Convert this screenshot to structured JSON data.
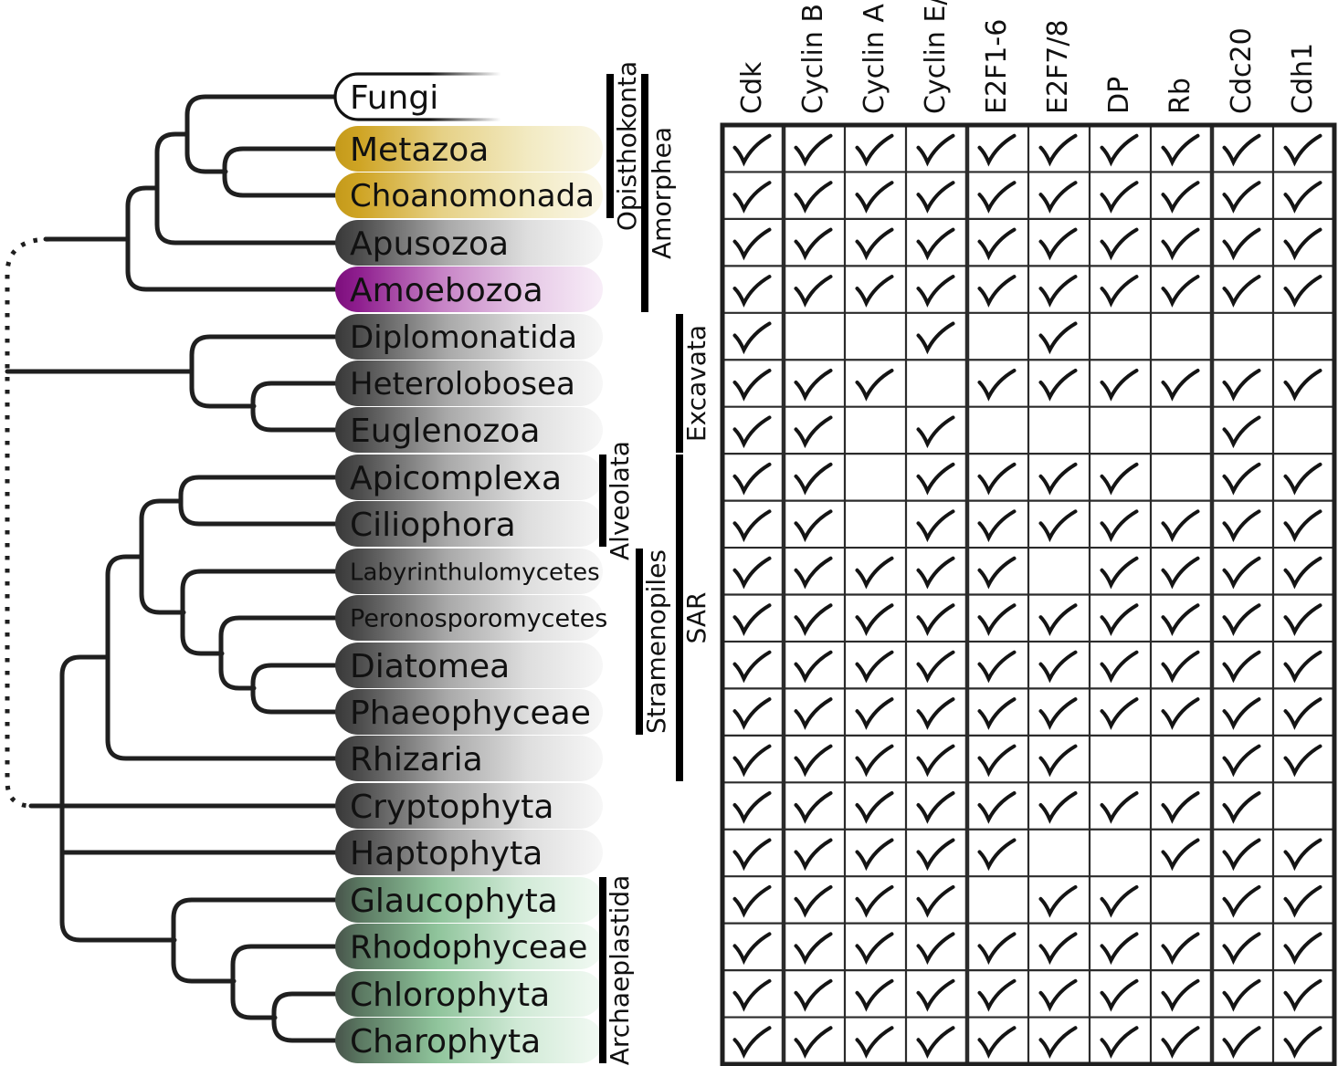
{
  "taxa": [
    {
      "name": "Fungi",
      "style": "outline"
    },
    {
      "name": "Metazoa",
      "style": "gold"
    },
    {
      "name": "Choanomonada",
      "style": "gold"
    },
    {
      "name": "Apusozoa",
      "style": "gray"
    },
    {
      "name": "Amoebozoa",
      "style": "purple"
    },
    {
      "name": "Diplomonatida",
      "style": "gray"
    },
    {
      "name": "Heterolobosea",
      "style": "gray"
    },
    {
      "name": "Euglenozoa",
      "style": "gray"
    },
    {
      "name": "Apicomplexa",
      "style": "gray"
    },
    {
      "name": "Ciliophora",
      "style": "gray"
    },
    {
      "name": "Labyrinthulomycetes",
      "style": "gray"
    },
    {
      "name": "Peronosporomycetes",
      "style": "gray"
    },
    {
      "name": "Diatomea",
      "style": "gray"
    },
    {
      "name": "Phaeophyceae",
      "style": "gray"
    },
    {
      "name": "Rhizaria",
      "style": "gray"
    },
    {
      "name": "Cryptophyta",
      "style": "gray"
    },
    {
      "name": "Haptophyta",
      "style": "gray"
    },
    {
      "name": "Glaucophyta",
      "style": "green"
    },
    {
      "name": "Rhodophyceae",
      "style": "green"
    },
    {
      "name": "Chlorophyta",
      "style": "green"
    },
    {
      "name": "Charophyta",
      "style": "green"
    }
  ],
  "clades": [
    {
      "label": "Opisthokonta",
      "from": "Fungi",
      "to": "Choanomonada"
    },
    {
      "label": "Amorphea",
      "from": "Fungi",
      "to": "Amoebozoa"
    },
    {
      "label": "Excavata",
      "from": "Diplomonatida",
      "to": "Euglenozoa"
    },
    {
      "label": "Alveolata",
      "from": "Apicomplexa",
      "to": "Ciliophora"
    },
    {
      "label": "SAR",
      "from": "Apicomplexa",
      "to": "Rhizaria"
    },
    {
      "label": "Stramenopiles",
      "from": "Labyrinthulomycetes",
      "to": "Phaeophyceae"
    },
    {
      "label": "Archaeplastida",
      "from": "Glaucophyta",
      "to": "Charophyta"
    }
  ],
  "matrix": {
    "columns": [
      "Cdk",
      "Cyclin B",
      "Cyclin A",
      "Cyclin E/D",
      "E2F1-6",
      "E2F7/8",
      "DP",
      "Rb",
      "Cdc20",
      "Cdh1"
    ],
    "column_groups_end_after": [
      "Cdk",
      "Cyclin E/D",
      "Rb"
    ],
    "check_symbol": "check-mark",
    "rows": [
      {
        "taxon": "Metazoa",
        "checks": [
          1,
          1,
          1,
          1,
          1,
          1,
          1,
          1,
          1,
          1
        ]
      },
      {
        "taxon": "Choanomonada",
        "checks": [
          1,
          1,
          1,
          1,
          1,
          1,
          1,
          1,
          1,
          1
        ]
      },
      {
        "taxon": "Apusozoa",
        "checks": [
          1,
          1,
          1,
          1,
          1,
          1,
          1,
          1,
          1,
          1
        ]
      },
      {
        "taxon": "Amoebozoa",
        "checks": [
          1,
          1,
          1,
          1,
          1,
          1,
          1,
          1,
          1,
          1
        ]
      },
      {
        "taxon": "Diplomonatida",
        "checks": [
          1,
          0,
          0,
          1,
          0,
          1,
          0,
          0,
          0,
          0
        ]
      },
      {
        "taxon": "Heterolobosea",
        "checks": [
          1,
          1,
          1,
          0,
          1,
          1,
          1,
          1,
          1,
          1
        ]
      },
      {
        "taxon": "Euglenozoa",
        "checks": [
          1,
          1,
          0,
          1,
          0,
          0,
          0,
          0,
          1,
          0
        ]
      },
      {
        "taxon": "Apicomplexa",
        "checks": [
          1,
          1,
          0,
          1,
          1,
          1,
          1,
          0,
          1,
          1
        ]
      },
      {
        "taxon": "Ciliophora",
        "checks": [
          1,
          1,
          0,
          1,
          1,
          1,
          1,
          1,
          1,
          1
        ]
      },
      {
        "taxon": "Labyrinthulomycetes",
        "checks": [
          1,
          1,
          1,
          1,
          1,
          0,
          1,
          1,
          1,
          1
        ]
      },
      {
        "taxon": "Peronosporomycetes",
        "checks": [
          1,
          1,
          1,
          1,
          1,
          1,
          1,
          1,
          1,
          1
        ]
      },
      {
        "taxon": "Diatomea",
        "checks": [
          1,
          1,
          1,
          1,
          1,
          1,
          1,
          1,
          1,
          1
        ]
      },
      {
        "taxon": "Phaeophyceae",
        "checks": [
          1,
          1,
          1,
          1,
          1,
          1,
          1,
          1,
          1,
          1
        ]
      },
      {
        "taxon": "Rhizaria",
        "checks": [
          1,
          1,
          1,
          1,
          1,
          1,
          0,
          0,
          1,
          1
        ]
      },
      {
        "taxon": "Cryptophyta",
        "checks": [
          1,
          1,
          1,
          1,
          1,
          1,
          1,
          1,
          1,
          0
        ]
      },
      {
        "taxon": "Haptophyta",
        "checks": [
          1,
          1,
          1,
          1,
          1,
          0,
          0,
          1,
          1,
          1
        ]
      },
      {
        "taxon": "Glaucophyta",
        "checks": [
          1,
          1,
          1,
          1,
          0,
          1,
          1,
          0,
          1,
          1
        ]
      },
      {
        "taxon": "Rhodophyceae",
        "checks": [
          1,
          1,
          1,
          1,
          1,
          1,
          1,
          1,
          1,
          1
        ]
      },
      {
        "taxon": "Chlorophyta",
        "checks": [
          1,
          1,
          1,
          1,
          1,
          1,
          1,
          1,
          1,
          1
        ]
      },
      {
        "taxon": "Charophyta",
        "checks": [
          1,
          1,
          1,
          1,
          1,
          1,
          1,
          1,
          1,
          1
        ]
      }
    ]
  },
  "colors": {
    "line": "#1f1f1f",
    "check": "#141414",
    "bracket": "#000000",
    "gold_dark": "#C49A1A",
    "gold_light": "#FAF7E8",
    "purple_dark": "#7C0E7C",
    "purple_light": "#F8EEF8",
    "gray_dark": "#383838",
    "gray_light": "#F7F7F7",
    "green_dark": "#47534A",
    "green_mid": "#8FC49B",
    "green_light": "#F3FAF4"
  }
}
